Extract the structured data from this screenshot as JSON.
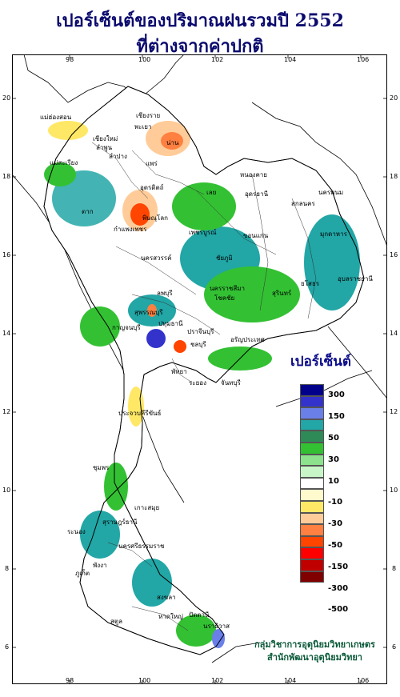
{
  "title": {
    "line1": "เปอร์เซ็นต์ของปริมาณฝนรวมปี 2552",
    "line2": "ที่ต่างจากค่าปกติ"
  },
  "axes": {
    "lon_ticks": [
      "98",
      "100",
      "102",
      "104",
      "106"
    ],
    "lat_ticks": [
      "20",
      "18",
      "16",
      "14",
      "12",
      "10",
      "8",
      "6"
    ]
  },
  "legend": {
    "title": "เปอร์เซ็นต์",
    "colors": [
      "#00008b",
      "#3333cc",
      "#6a7fe8",
      "#22a6a6",
      "#2e8b57",
      "#33c133",
      "#8de28d",
      "#c8f5c8",
      "#ffffff",
      "#fffacd",
      "#ffe866",
      "#ffcc99",
      "#ff8040",
      "#ff4500",
      "#ff0000",
      "#c00000",
      "#800000"
    ],
    "labels": [
      "300",
      "150",
      "50",
      "30",
      "10",
      "-10",
      "-30",
      "-50",
      "-150",
      "-300",
      "-500"
    ]
  },
  "credit": {
    "line1": "กลุ่มวิชาการอุตุนิยมวิทยาเกษตร",
    "line2": "สำนักพัฒนาอุตุนิยมวิทยา"
  },
  "places": [
    {
      "name": "เชียงราย"
    },
    {
      "name": "แม่ฮ่องสอน"
    },
    {
      "name": "พะเยา"
    },
    {
      "name": "น่าน"
    },
    {
      "name": "เชียงใหม่"
    },
    {
      "name": "ลำพูน"
    },
    {
      "name": "ลำปาง"
    },
    {
      "name": "แพร่"
    },
    {
      "name": "แม่สะเรียง"
    },
    {
      "name": "อุตรดิตถ์"
    },
    {
      "name": "หนองคาย"
    },
    {
      "name": "นครพนม"
    },
    {
      "name": "สกลนคร"
    },
    {
      "name": "เลย"
    },
    {
      "name": "อุดรธานี"
    },
    {
      "name": "ตาก"
    },
    {
      "name": "พิษณุโลก"
    },
    {
      "name": "กำแพงเพชร"
    },
    {
      "name": "เพชรบูรณ์"
    },
    {
      "name": "มุกดาหาร"
    },
    {
      "name": "ขอนแก่น"
    },
    {
      "name": "นครสวรรค์"
    },
    {
      "name": "ชัยภูมิ"
    },
    {
      "name": "อุบลราชธานี"
    },
    {
      "name": "ยโสธร"
    },
    {
      "name": "ลพบุรี"
    },
    {
      "name": "นครราชสีมา"
    },
    {
      "name": "สุรินทร์"
    },
    {
      "name": "โชคชัย"
    },
    {
      "name": "สุพรรณบุรี"
    },
    {
      "name": "ปทุมธานี"
    },
    {
      "name": "กาญจนบุรี"
    },
    {
      "name": "ปราจีนบุรี"
    },
    {
      "name": "อรัญประเทศ"
    },
    {
      "name": "ชลบุรี"
    },
    {
      "name": "พัทยา"
    },
    {
      "name": "ระยอง"
    },
    {
      "name": "จันทบุรี"
    },
    {
      "name": "ประจวบคีรีขันธ์"
    },
    {
      "name": "ชุมพร"
    },
    {
      "name": "เกาะสมุย"
    },
    {
      "name": "สุราษฎร์ธานี"
    },
    {
      "name": "ระนอง"
    },
    {
      "name": "นครศรีธรรมราช"
    },
    {
      "name": "ภูเก็ต"
    },
    {
      "name": "พังงา"
    },
    {
      "name": "สงขลา"
    },
    {
      "name": "หาดใหญ่"
    },
    {
      "name": "ปัตตานี"
    },
    {
      "name": "นราธิวาส"
    },
    {
      "name": "สตูล"
    }
  ]
}
